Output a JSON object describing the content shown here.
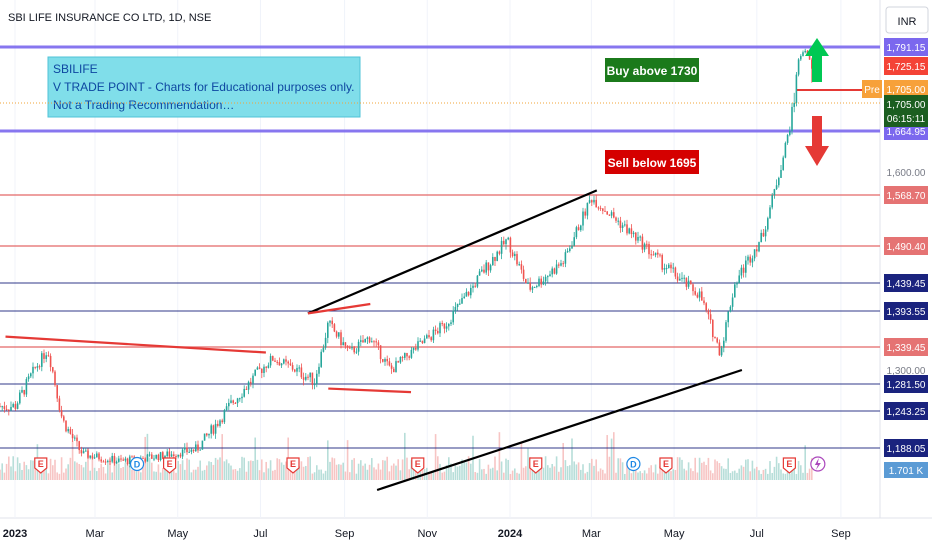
{
  "header": {
    "symbol_title": "SBI LIFE INSURANCE CO LTD, 1D, NSE",
    "currency": "INR"
  },
  "note": {
    "line1": "SBILIFE",
    "line2": "V TRADE POINT - Charts for Educational purposes only.",
    "line3": "Not a Trading Recommendation…"
  },
  "annotations": {
    "buy_label": "Buy above 1730",
    "sell_label": "Sell below 1695",
    "pre_label": "Pre"
  },
  "price_badges": {
    "pre_price": "1,705.00",
    "last_price": "1,705.00",
    "countdown": "06:15:11",
    "level_1725": "1,725.15",
    "volume_label": "1.701 K"
  },
  "colors": {
    "blue_level": "#7b68ee",
    "red_level": "#e57373",
    "navy_level": "#1a237e",
    "candle_up": "#26a69a",
    "candle_down": "#ef5350",
    "label_green": "#1b7a1b",
    "label_red": "#d50000",
    "note_bg": "#80deea"
  },
  "chart_data": {
    "type": "candlestick",
    "title": "SBI LIFE INSURANCE CO LTD, 1D, NSE",
    "x_tick_labels": [
      "2023",
      "Mar",
      "May",
      "Jul",
      "Sep",
      "Nov",
      "2024",
      "Mar",
      "May",
      "Jul",
      "Sep"
    ],
    "y_tick_labels": [
      "1,600.00",
      "1,300.00"
    ],
    "horizontal_levels": [
      {
        "value": 1791.15,
        "label": "1,791.15",
        "style": "blue"
      },
      {
        "value": 1664.95,
        "label": "1,664.95",
        "style": "blue"
      },
      {
        "value": 1568.7,
        "label": "1,568.70",
        "style": "red"
      },
      {
        "value": 1490.4,
        "label": "1,490.40",
        "style": "red"
      },
      {
        "value": 1439.45,
        "label": "1,439.45",
        "style": "navy"
      },
      {
        "value": 1393.55,
        "label": "1,393.55",
        "style": "navy"
      },
      {
        "value": 1339.45,
        "label": "1,339.45",
        "style": "red"
      },
      {
        "value": 1281.5,
        "label": "1,281.50",
        "style": "navy"
      },
      {
        "value": 1243.25,
        "label": "1,243.25",
        "style": "navy"
      },
      {
        "value": 1188.05,
        "label": "1,188.05",
        "style": "navy"
      }
    ],
    "ylim": [
      1150,
      1830
    ],
    "x_range": [
      "2023-01-01",
      "2024-09-30"
    ],
    "price_path": [
      {
        "date": "2023-01-01",
        "price": 1250
      },
      {
        "date": "2023-01-25",
        "price": 1335
      },
      {
        "date": "2023-02-05",
        "price": 1230
      },
      {
        "date": "2023-02-20",
        "price": 1175
      },
      {
        "date": "2023-03-20",
        "price": 1160
      },
      {
        "date": "2023-04-20",
        "price": 1172
      },
      {
        "date": "2023-05-15",
        "price": 1185
      },
      {
        "date": "2023-06-10",
        "price": 1255
      },
      {
        "date": "2023-07-10",
        "price": 1320
      },
      {
        "date": "2023-08-10",
        "price": 1285
      },
      {
        "date": "2023-08-20",
        "price": 1375
      },
      {
        "date": "2023-09-05",
        "price": 1330
      },
      {
        "date": "2023-09-20",
        "price": 1355
      },
      {
        "date": "2023-10-05",
        "price": 1300
      },
      {
        "date": "2023-10-25",
        "price": 1340
      },
      {
        "date": "2023-11-15",
        "price": 1375
      },
      {
        "date": "2023-12-10",
        "price": 1450
      },
      {
        "date": "2023-12-30",
        "price": 1500
      },
      {
        "date": "2024-01-15",
        "price": 1430
      },
      {
        "date": "2024-02-10",
        "price": 1470
      },
      {
        "date": "2024-03-01",
        "price": 1565
      },
      {
        "date": "2024-03-25",
        "price": 1520
      },
      {
        "date": "2024-04-20",
        "price": 1470
      },
      {
        "date": "2024-05-20",
        "price": 1420
      },
      {
        "date": "2024-06-04",
        "price": 1330
      },
      {
        "date": "2024-06-15",
        "price": 1440
      },
      {
        "date": "2024-07-05",
        "price": 1505
      },
      {
        "date": "2024-07-20",
        "price": 1620
      },
      {
        "date": "2024-07-28",
        "price": 1700
      },
      {
        "date": "2024-08-05",
        "price": 1790
      },
      {
        "date": "2024-08-12",
        "price": 1705
      }
    ],
    "trendlines": [
      {
        "from": {
          "date": "2022-12-25",
          "price": 1355
        },
        "to": {
          "date": "2023-07-05",
          "price": 1330
        },
        "color": "red"
      },
      {
        "from": {
          "date": "2023-08-05",
          "price": 1390
        },
        "to": {
          "date": "2024-03-05",
          "price": 1575
        },
        "color": "black"
      },
      {
        "from": {
          "date": "2023-08-05",
          "price": 1390
        },
        "to": {
          "date": "2023-09-20",
          "price": 1405
        },
        "color": "red"
      },
      {
        "from": {
          "date": "2023-08-20",
          "price": 1275
        },
        "to": {
          "date": "2023-10-20",
          "price": 1270
        },
        "color": "red"
      },
      {
        "from": {
          "date": "2023-09-25",
          "price": 1100
        },
        "to": {
          "date": "2024-06-20",
          "price": 1300
        },
        "color": "black"
      }
    ]
  }
}
